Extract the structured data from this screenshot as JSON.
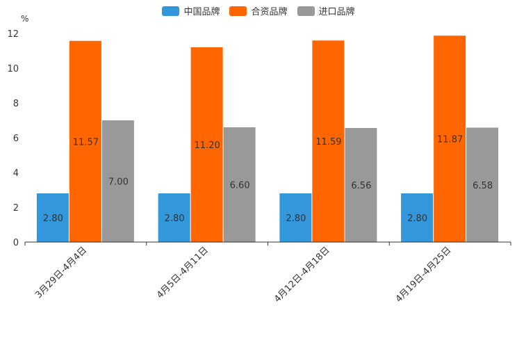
{
  "chart_data": {
    "type": "bar",
    "unit": "%",
    "categories": [
      "3月29日-4月4日",
      "4月5日-4月11日",
      "4月12日-4月18日",
      "4月19日-4月25日"
    ],
    "series": [
      {
        "name": "中国品牌",
        "color": "#3398db",
        "values": [
          2.8,
          2.8,
          2.8,
          2.8
        ]
      },
      {
        "name": "合资品牌",
        "color": "#ff6600",
        "values": [
          11.57,
          11.2,
          11.59,
          11.87
        ]
      },
      {
        "name": "进口品牌",
        "color": "#999999",
        "values": [
          7.0,
          6.6,
          6.56,
          6.58
        ]
      }
    ],
    "ylim": [
      0,
      12
    ],
    "yticks": [
      0,
      2,
      4,
      6,
      8,
      10,
      12
    ],
    "legend_position": "top-center",
    "grid": false
  }
}
